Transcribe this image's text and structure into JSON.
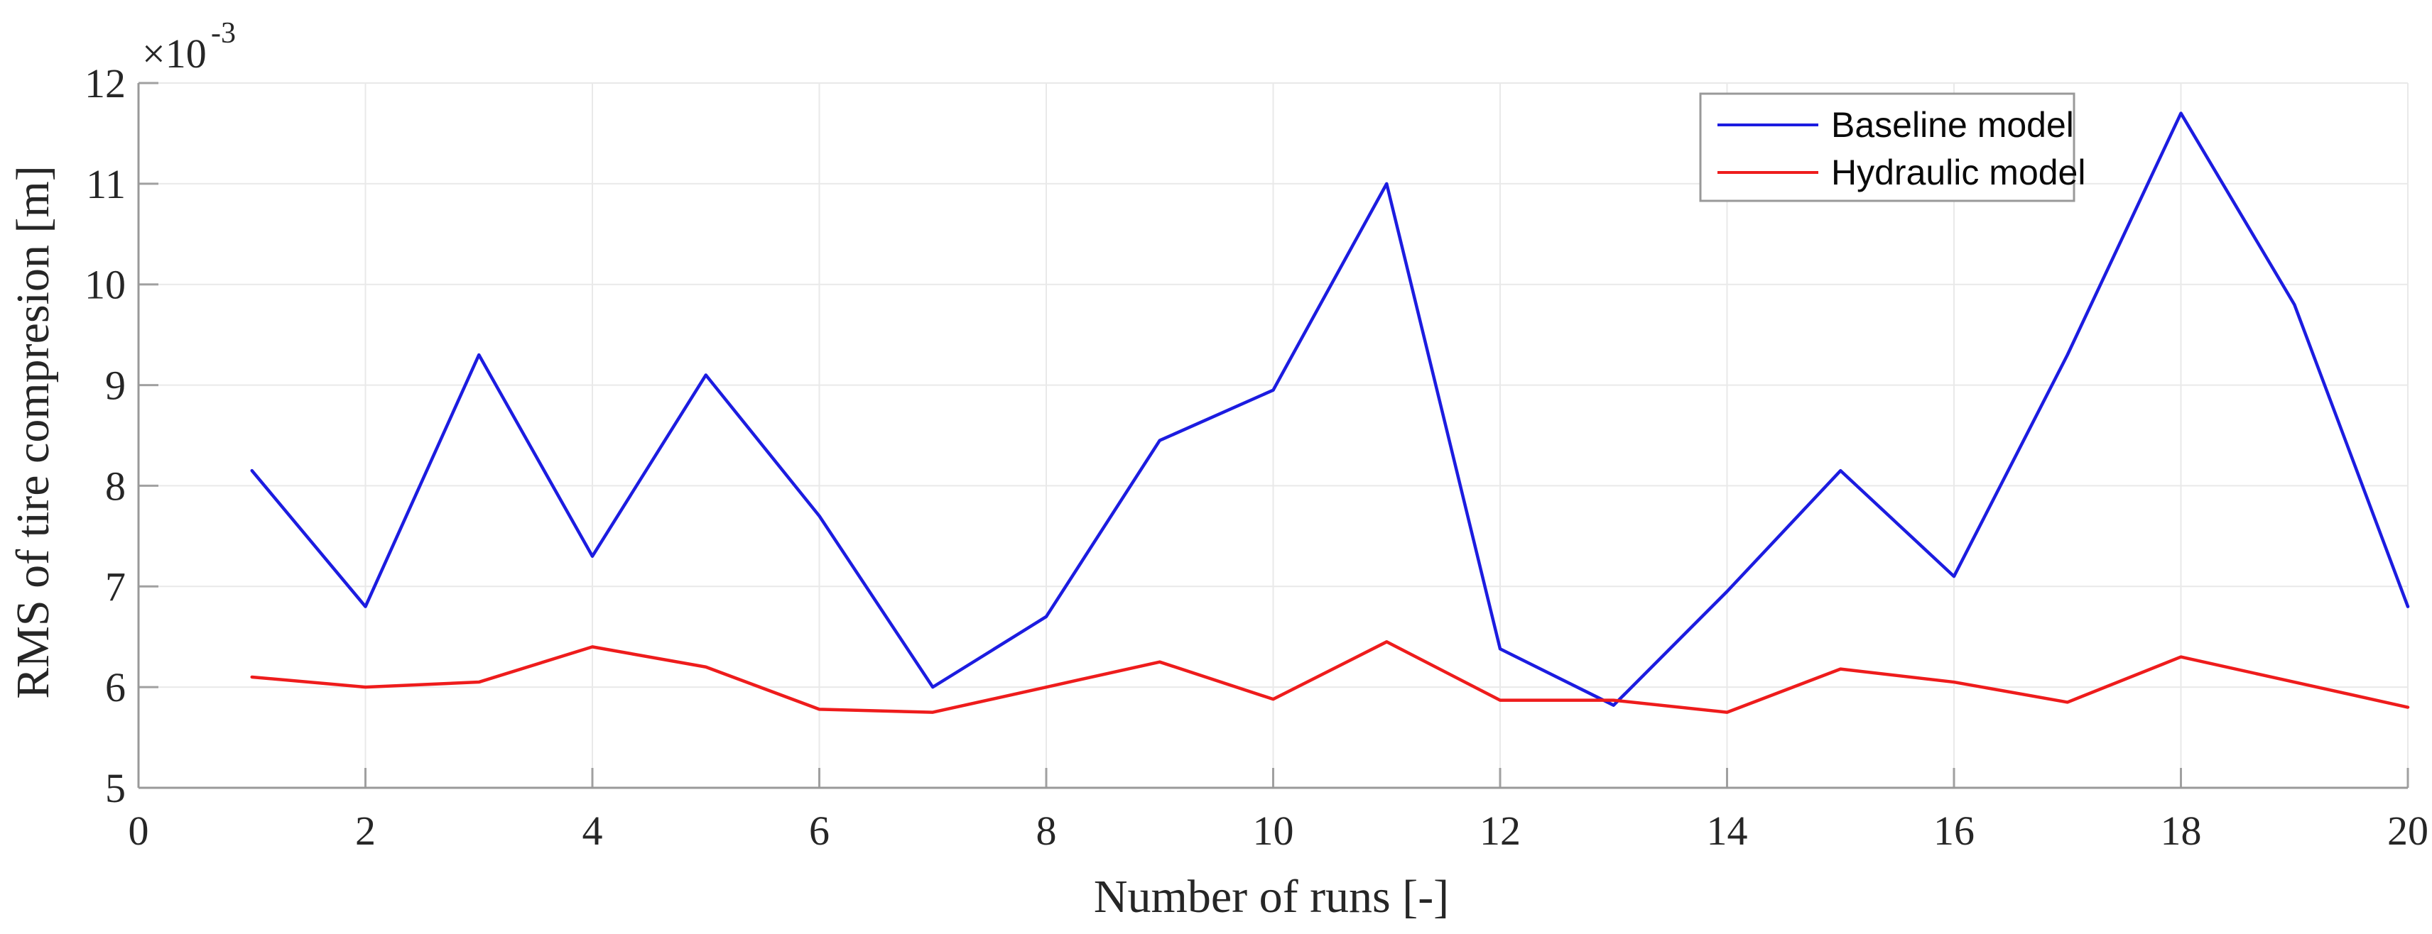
{
  "figure": {
    "background": "#ffffff",
    "y_axis": {
      "label": "RMS of tire compresion [m]",
      "multiplier_base": "×10",
      "multiplier_exponent": "-3",
      "ticks": [
        5,
        6,
        7,
        8,
        9,
        10,
        11,
        12
      ]
    },
    "x_axis": {
      "label": "Number of runs [-]",
      "ticks": [
        0,
        2,
        4,
        6,
        8,
        10,
        12,
        14,
        16,
        18,
        20
      ]
    },
    "colors": {
      "grid": "#e9e9e9",
      "axis": "#999999",
      "tick": "#a0a0a0",
      "text": "#262626",
      "legend_border": "#999999"
    }
  },
  "chart_data": {
    "type": "line",
    "title": "",
    "xlabel": "Number of runs [-]",
    "ylabel": "RMS of tire compresion [m]",
    "y_scale_note": "y tick values are ×10⁻³ metres",
    "x": [
      1,
      2,
      3,
      4,
      5,
      6,
      7,
      8,
      9,
      10,
      11,
      12,
      13,
      14,
      15,
      16,
      17,
      18,
      19,
      20
    ],
    "series": [
      {
        "name": "Baseline model",
        "color": "#1c1ce0",
        "values": [
          8.15,
          6.8,
          9.3,
          7.3,
          9.1,
          7.7,
          6.0,
          6.7,
          8.45,
          8.95,
          11.0,
          6.38,
          5.82,
          6.95,
          8.15,
          7.1,
          9.3,
          11.7,
          9.8,
          6.8
        ]
      },
      {
        "name": "Hydraulic model",
        "color": "#ee1c1c",
        "values": [
          6.1,
          6.0,
          6.05,
          6.4,
          6.2,
          5.78,
          5.75,
          6.0,
          6.25,
          5.88,
          6.45,
          5.87,
          5.87,
          5.75,
          6.18,
          6.05,
          5.85,
          6.3,
          6.05,
          5.8
        ]
      }
    ],
    "xlim": [
      0,
      20
    ],
    "ylim": [
      5,
      12
    ],
    "grid": true,
    "legend_position": "top-right-inside"
  }
}
